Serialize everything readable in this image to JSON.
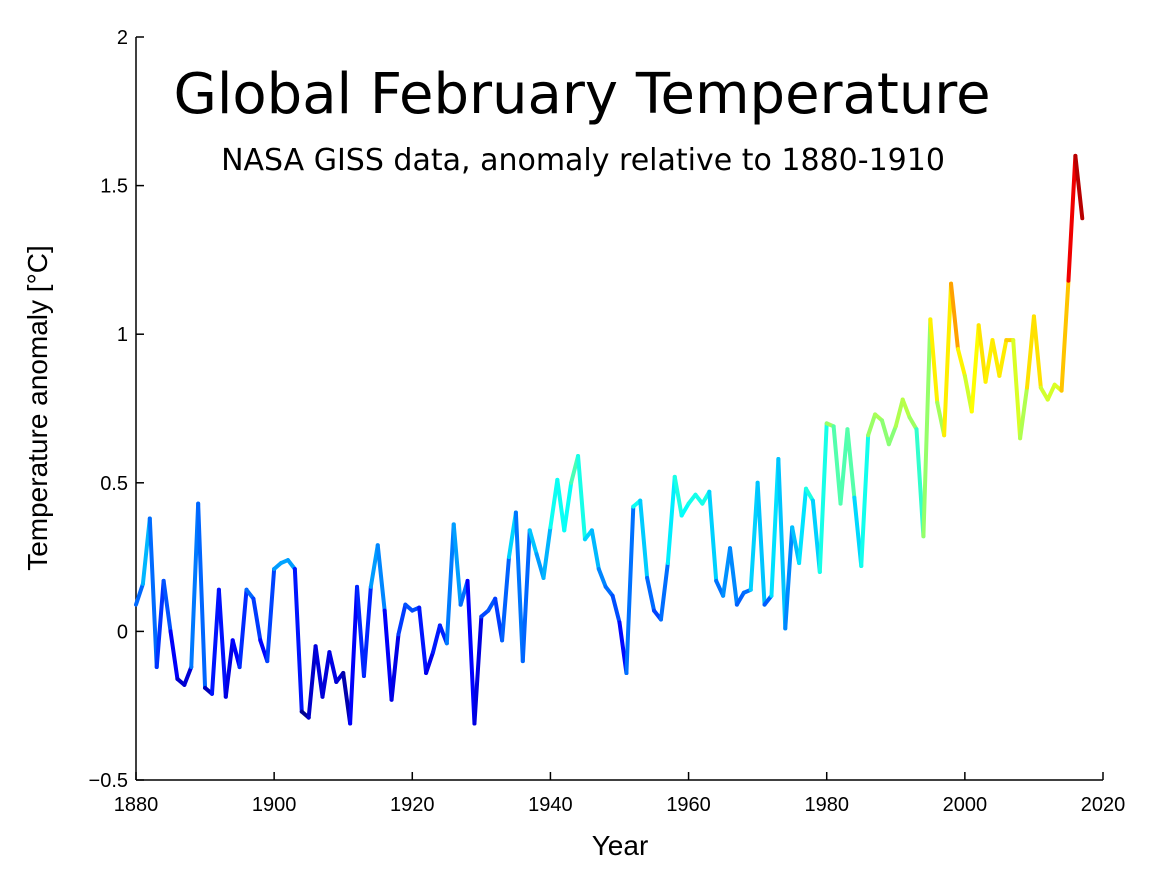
{
  "chart_data": {
    "type": "line",
    "title": "Global February Temperature",
    "subtitle": "NASA GISS data, anomaly relative to 1880-1910",
    "xlabel": "Year",
    "ylabel": "Temperature anomaly [°C]",
    "xlim": [
      1880,
      2020
    ],
    "ylim": [
      -0.5,
      2
    ],
    "xticks": [
      "1880",
      "1900",
      "1920",
      "1940",
      "1960",
      "1980",
      "2000",
      "2020"
    ],
    "yticks": [
      "−0.5",
      "0",
      "0.5",
      "1",
      "1.5",
      "2"
    ],
    "grid": false,
    "colormap": "jet",
    "series": [
      {
        "x": [
          1880,
          1881,
          1882,
          1883,
          1884,
          1885,
          1886,
          1887,
          1888,
          1889,
          1890,
          1891,
          1892,
          1893,
          1894,
          1895,
          1896,
          1897,
          1898,
          1899,
          1900,
          1901,
          1902,
          1903,
          1904,
          1905,
          1906,
          1907,
          1908,
          1909,
          1910,
          1911,
          1912,
          1913,
          1914,
          1915,
          1916,
          1917,
          1918,
          1919,
          1920,
          1921,
          1922,
          1923,
          1924,
          1925,
          1926,
          1927,
          1928,
          1929,
          1930,
          1931,
          1932,
          1933,
          1934,
          1935,
          1936,
          1937,
          1938,
          1939,
          1940,
          1941,
          1942,
          1943,
          1944,
          1945,
          1946,
          1947,
          1948,
          1949,
          1950,
          1951,
          1952,
          1953,
          1954,
          1955,
          1956,
          1957,
          1958,
          1959,
          1960,
          1961,
          1962,
          1963,
          1964,
          1965,
          1966,
          1967,
          1968,
          1969,
          1970,
          1971,
          1972,
          1973,
          1974,
          1975,
          1976,
          1977,
          1978,
          1979,
          1980,
          1981,
          1982,
          1983,
          1984,
          1985,
          1986,
          1987,
          1988,
          1989,
          1990,
          1991,
          1992,
          1993,
          1994,
          1995,
          1996,
          1997,
          1998,
          1999,
          2000,
          2001,
          2002,
          2003,
          2004,
          2005,
          2006,
          2007,
          2008,
          2009,
          2010,
          2011,
          2012,
          2013,
          2014,
          2015,
          2016,
          2017
        ],
        "y": [
          0.09,
          0.16,
          0.38,
          -0.12,
          0.17,
          0.0,
          -0.16,
          -0.18,
          -0.12,
          0.43,
          -0.19,
          -0.21,
          0.14,
          -0.22,
          -0.03,
          -0.12,
          0.14,
          0.11,
          -0.03,
          -0.1,
          0.21,
          0.23,
          0.24,
          0.21,
          -0.27,
          -0.29,
          -0.05,
          -0.22,
          -0.07,
          -0.17,
          -0.14,
          -0.31,
          0.15,
          -0.15,
          0.15,
          0.29,
          0.07,
          -0.23,
          -0.01,
          0.09,
          0.07,
          0.08,
          -0.14,
          -0.07,
          0.02,
          -0.04,
          0.36,
          0.09,
          0.17,
          -0.31,
          0.05,
          0.07,
          0.11,
          -0.03,
          0.25,
          0.4,
          -0.1,
          0.34,
          0.26,
          0.18,
          0.35,
          0.51,
          0.34,
          0.5,
          0.59,
          0.31,
          0.34,
          0.21,
          0.15,
          0.12,
          0.03,
          -0.14,
          0.42,
          0.44,
          0.18,
          0.07,
          0.04,
          0.23,
          0.52,
          0.39,
          0.43,
          0.46,
          0.43,
          0.47,
          0.17,
          0.12,
          0.28,
          0.09,
          0.13,
          0.14,
          0.5,
          0.09,
          0.12,
          0.58,
          0.01,
          0.35,
          0.23,
          0.48,
          0.44,
          0.2,
          0.7,
          0.69,
          0.43,
          0.68,
          0.45,
          0.22,
          0.66,
          0.73,
          0.71,
          0.63,
          0.69,
          0.78,
          0.72,
          0.68,
          0.32,
          1.05,
          0.77,
          0.66,
          1.17,
          0.95,
          0.86,
          0.74,
          1.03,
          0.84,
          0.98,
          0.86,
          0.98,
          0.98,
          0.65,
          0.82,
          1.06,
          0.82,
          0.78,
          0.83,
          0.81,
          1.18,
          1.6,
          1.39
        ]
      }
    ]
  }
}
